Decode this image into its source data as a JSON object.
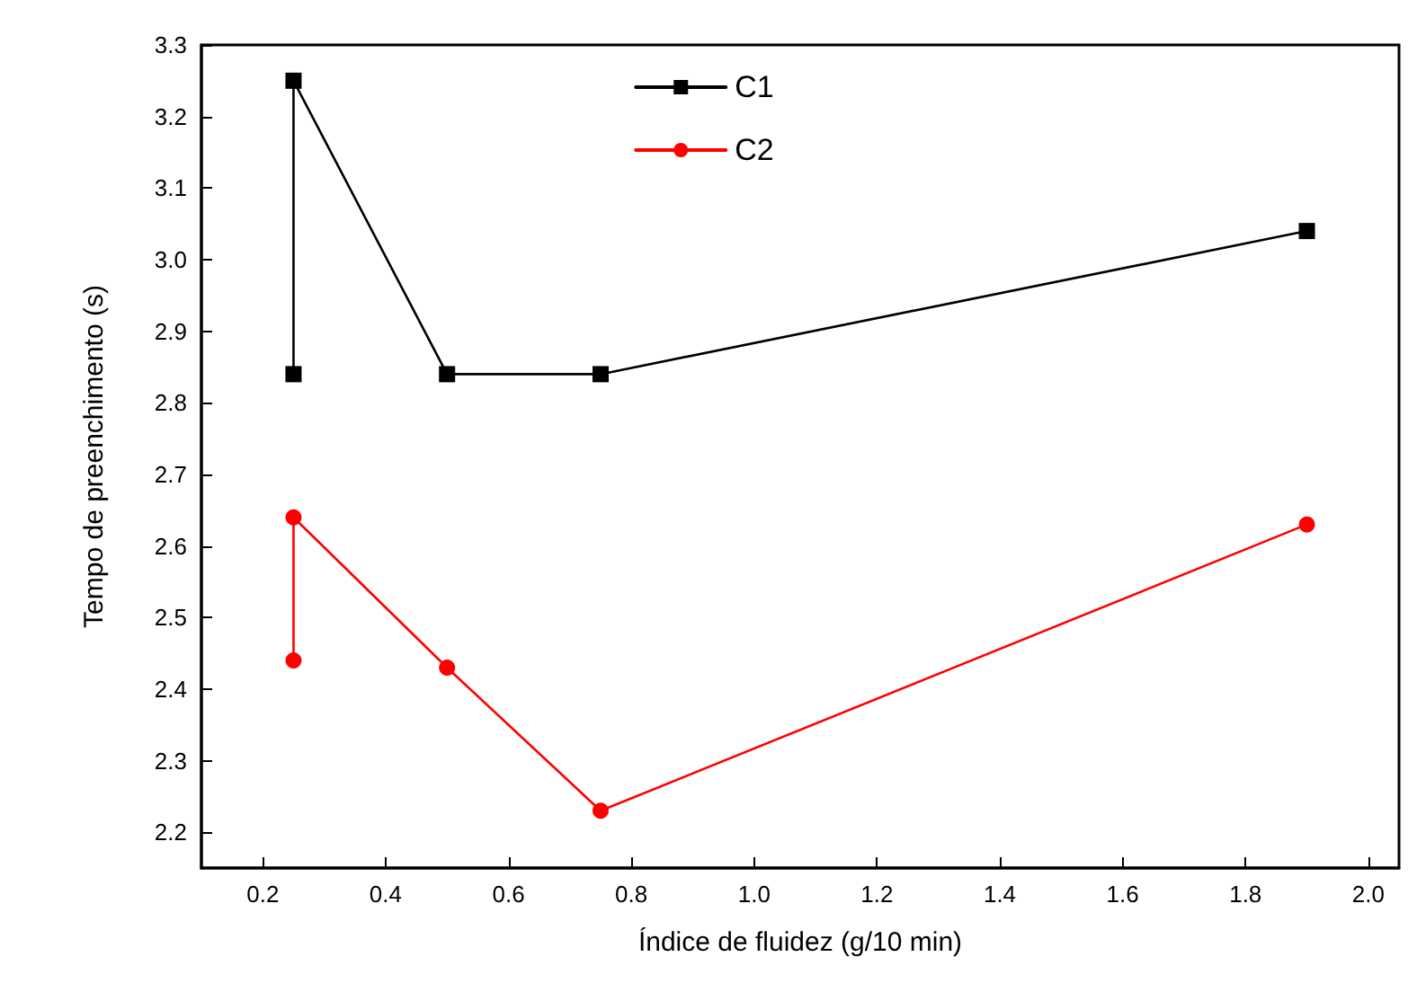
{
  "chart_data": {
    "type": "line",
    "xlabel": "Índice de fluidez (g/10 min)",
    "ylabel": "Tempo de preenchimento (s)",
    "xlim": [
      0.1,
      2.05
    ],
    "xticks": [
      0.2,
      0.4,
      0.6,
      0.8,
      {
        "value": 1,
        "label": "1.0"
      },
      1.2,
      1.4,
      1.6,
      1.8,
      {
        "value": 2,
        "label": "2.0"
      }
    ],
    "ylim": [
      2.15,
      3.3
    ],
    "yticks": [
      2.2,
      2.3,
      2.4,
      2.5,
      2.6,
      2.7,
      2.8,
      2.9,
      {
        "value": 3,
        "label": "3.0"
      },
      3.1,
      3.2,
      3.3
    ],
    "grid": false,
    "legend": "top",
    "line_style": "solid",
    "series": [
      {
        "name": "C1",
        "color": "#000000",
        "marker": "square",
        "x": [
          0.25,
          0.25,
          0.5,
          0.75,
          1.9
        ],
        "values": [
          2.84,
          3.25,
          2.84,
          2.84,
          3.04
        ]
      },
      {
        "name": "C2",
        "color": "#ff0000",
        "marker": "circle",
        "x": [
          0.25,
          0.25,
          0.5,
          0.75,
          1.9
        ],
        "values": [
          2.44,
          2.64,
          2.43,
          2.23,
          2.63
        ]
      }
    ]
  }
}
